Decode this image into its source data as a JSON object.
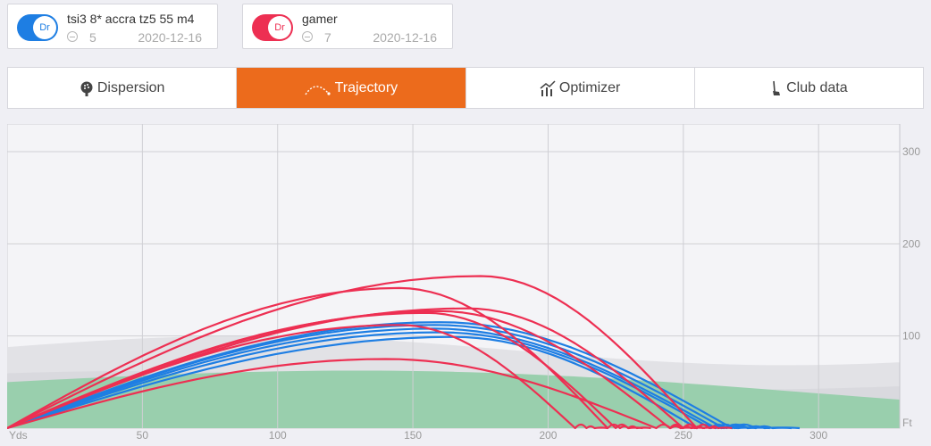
{
  "players": [
    {
      "club": "Dr",
      "name": "tsi3 8* accra tz5 55 m4",
      "count": "5",
      "date": "2020-12-16",
      "color": "#1e7ee3"
    },
    {
      "club": "Dr",
      "name": "gamer",
      "count": "7",
      "date": "2020-12-16",
      "color": "#ed2f52"
    }
  ],
  "tabs": [
    {
      "label": "Dispersion",
      "icon": "golf-ball-icon",
      "active": false
    },
    {
      "label": "Trajectory",
      "icon": "trajectory-icon",
      "active": true
    },
    {
      "label": "Optimizer",
      "icon": "bar-chart-icon",
      "active": false
    },
    {
      "label": "Club data",
      "icon": "golf-club-icon",
      "active": false
    }
  ],
  "chart_data": {
    "type": "line",
    "xlabel": "Yds",
    "ylabel": "Ft",
    "xlim": [
      0,
      330
    ],
    "ylim": [
      0,
      330
    ],
    "x_ticks": [
      50,
      100,
      150,
      200,
      250,
      300
    ],
    "y_ticks": [
      100,
      200,
      300
    ],
    "grid": true,
    "series": [
      {
        "color": "#1e7ee3",
        "shots": [
          {
            "carry": 268,
            "apex": 115,
            "apex_x": 160,
            "rollout": 293
          },
          {
            "carry": 265,
            "apex": 112,
            "apex_x": 158,
            "rollout": 290
          },
          {
            "carry": 262,
            "apex": 108,
            "apex_x": 158,
            "rollout": 282
          },
          {
            "carry": 260,
            "apex": 104,
            "apex_x": 160,
            "rollout": 277
          },
          {
            "carry": 255,
            "apex": 99,
            "apex_x": 165,
            "rollout": 270
          }
        ]
      },
      {
        "color": "#ed2f52",
        "shots": [
          {
            "carry": 255,
            "apex": 165,
            "apex_x": 175,
            "rollout": 268
          },
          {
            "carry": 222,
            "apex": 152,
            "apex_x": 145,
            "rollout": 235
          },
          {
            "carry": 250,
            "apex": 130,
            "apex_x": 170,
            "rollout": 262
          },
          {
            "carry": 245,
            "apex": 127,
            "apex_x": 160,
            "rollout": 258
          },
          {
            "carry": 225,
            "apex": 125,
            "apex_x": 155,
            "rollout": 238
          },
          {
            "carry": 210,
            "apex": 112,
            "apex_x": 145,
            "rollout": 222
          },
          {
            "carry": 240,
            "apex": 75,
            "apex_x": 140,
            "rollout": 255
          }
        ]
      }
    ]
  }
}
